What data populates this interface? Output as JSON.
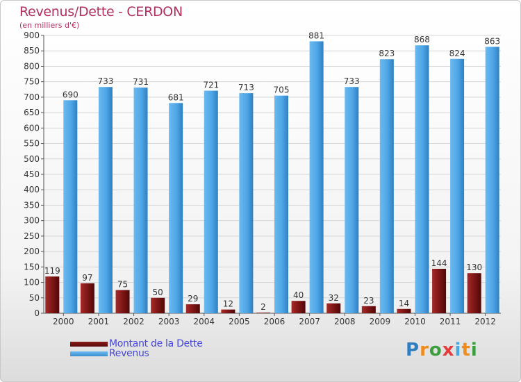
{
  "title": "Revenus/Dette - CERDON",
  "subtitle": "(en milliers d'€)",
  "colors": {
    "dette": "#7a1414",
    "revenus": "#4ea6e6",
    "title": "#b2305f",
    "legend_text": "#4646dc"
  },
  "chart_data": {
    "type": "bar",
    "title": "Revenus/Dette - CERDON",
    "ylabel": "(en milliers d'€)",
    "categories": [
      "2000",
      "2001",
      "2002",
      "2003",
      "2004",
      "2005",
      "2006",
      "2007",
      "2008",
      "2009",
      "2010",
      "2011",
      "2012"
    ],
    "series": [
      {
        "name": "Montant de la Dette",
        "values": [
          119,
          97,
          75,
          50,
          29,
          12,
          2,
          40,
          32,
          23,
          14,
          144,
          130
        ]
      },
      {
        "name": "Revenus",
        "values": [
          690,
          733,
          731,
          681,
          721,
          713,
          705,
          881,
          733,
          823,
          868,
          824,
          863
        ]
      }
    ],
    "ylim": [
      0,
      900
    ],
    "yticks": [
      0,
      50,
      100,
      150,
      200,
      250,
      300,
      350,
      400,
      450,
      500,
      550,
      600,
      650,
      700,
      750,
      800,
      850,
      900
    ],
    "grid": true,
    "legend_position": "bottom-left"
  },
  "legend": {
    "dette": "Montant de la Dette",
    "revenus": "Revenus"
  },
  "logo": {
    "text": "Proxiti",
    "letters": [
      "P",
      "r",
      "o",
      "x",
      "i",
      "t",
      "i"
    ]
  }
}
